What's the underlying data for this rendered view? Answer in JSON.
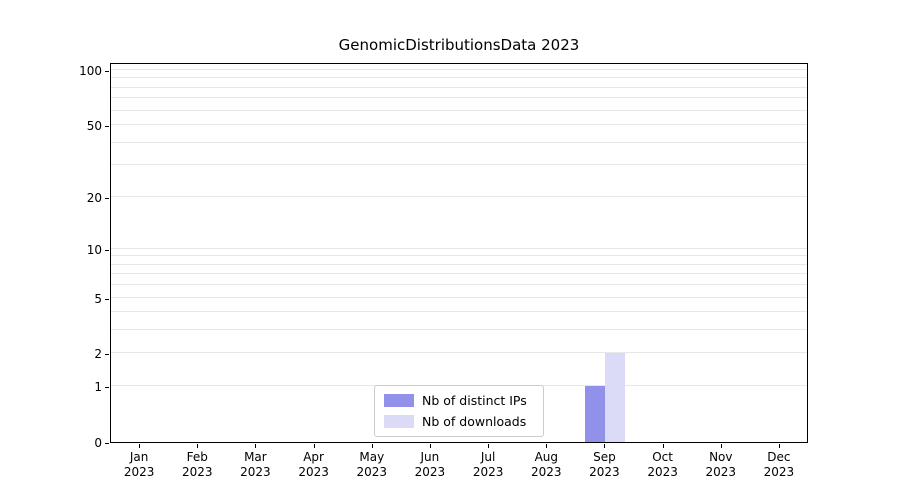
{
  "chart_data": {
    "type": "bar",
    "title": "GenomicDistributionsData 2023",
    "categories": [
      "Jan 2023",
      "Feb 2023",
      "Mar 2023",
      "Apr 2023",
      "May 2023",
      "Jun 2023",
      "Jul 2023",
      "Aug 2023",
      "Sep 2023",
      "Oct 2023",
      "Nov 2023",
      "Dec 2023"
    ],
    "series": [
      {
        "name": "Nb of distinct IPs",
        "color": "#9191e9",
        "values": [
          0,
          0,
          0,
          0,
          0,
          0,
          0,
          0,
          1,
          0,
          0,
          0
        ]
      },
      {
        "name": "Nb of downloads",
        "color": "#dbdbf8",
        "values": [
          0,
          0,
          0,
          0,
          0,
          0,
          0,
          0,
          2,
          0,
          0,
          0
        ]
      }
    ],
    "yticks": [
      0,
      1,
      2,
      5,
      10,
      20,
      50,
      100
    ],
    "ylim": [
      0,
      110
    ],
    "yscale": "log10(1+y)",
    "xlabel": "",
    "ylabel": "",
    "grid": true,
    "legend_position": "bottom-center",
    "colors": {
      "grid": "#e7e7e7",
      "axis": "#000000",
      "background": "#ffffff"
    }
  }
}
